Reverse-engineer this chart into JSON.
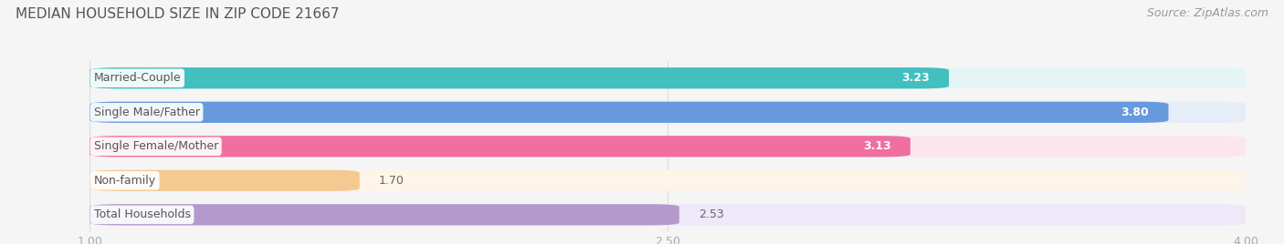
{
  "title": "MEDIAN HOUSEHOLD SIZE IN ZIP CODE 21667",
  "source": "Source: ZipAtlas.com",
  "categories": [
    "Married-Couple",
    "Single Male/Father",
    "Single Female/Mother",
    "Non-family",
    "Total Households"
  ],
  "values": [
    3.23,
    3.8,
    3.13,
    1.7,
    2.53
  ],
  "bar_colors": [
    "#42BFBF",
    "#6699DD",
    "#F06FA0",
    "#F5C992",
    "#B399CC"
  ],
  "bar_bg_colors": [
    "#E5F5F5",
    "#E5EDF8",
    "#FDE5F0",
    "#FDF5E8",
    "#EEE8F8"
  ],
  "xmin": 1.0,
  "xmax": 4.0,
  "xticks": [
    1.0,
    2.5,
    4.0
  ],
  "tick_labels": [
    "1.00",
    "2.50",
    "4.00"
  ],
  "bar_height": 0.62,
  "bar_gap": 0.38,
  "title_fontsize": 11,
  "label_fontsize": 9,
  "value_fontsize": 9,
  "source_fontsize": 9,
  "bg_color": "#f5f5f5",
  "value_inside_color": "white",
  "value_outside_color": "#666666",
  "label_text_color": "#555555",
  "grid_color": "#dddddd",
  "tick_color": "#aaaaaa"
}
